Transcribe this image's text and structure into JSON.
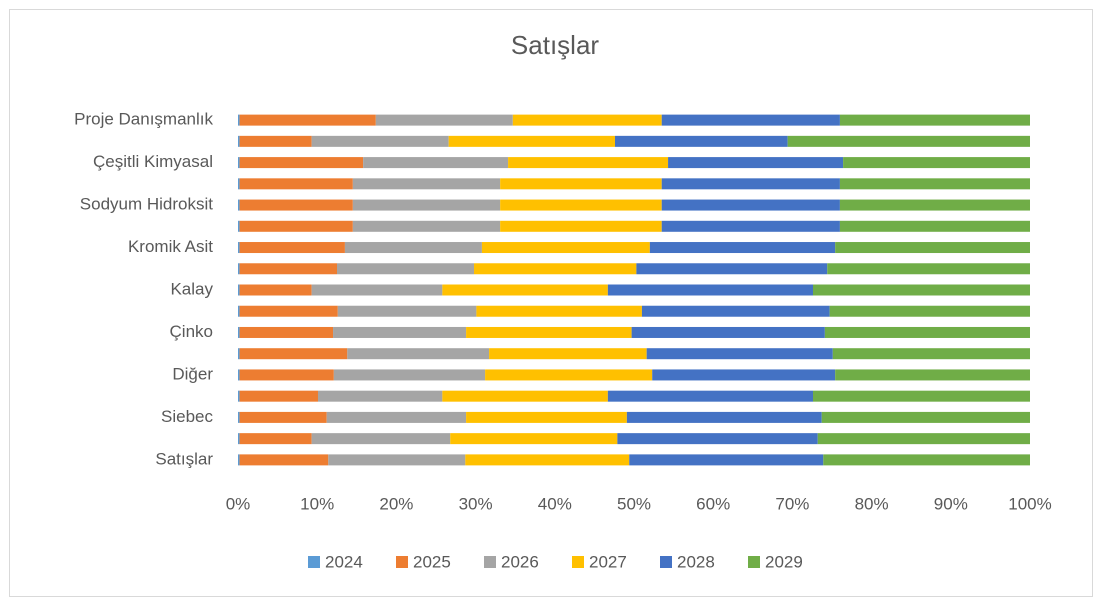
{
  "chart_data": {
    "type": "bar",
    "orientation": "horizontal",
    "stacked": "percent",
    "title": "Satışlar",
    "categories": [
      "Satışlar",
      null,
      "Siebec",
      null,
      "Diğer",
      null,
      "Çinko",
      null,
      "Kalay",
      null,
      "Kromik Asit",
      null,
      "Sodyum Hidroksit",
      null,
      "Çeşitli Kimyasal",
      null,
      "Proje Danışmanlık"
    ],
    "series": [
      {
        "name": "2024",
        "color": "#5b9bd5",
        "values": [
          0.2,
          0.2,
          0.2,
          0.2,
          0.2,
          0.2,
          0.2,
          0.2,
          0.2,
          0.2,
          0.2,
          0.2,
          0.2,
          0.2,
          0.2,
          0.2,
          0.2
        ]
      },
      {
        "name": "2025",
        "color": "#ed7d31",
        "values": [
          11.2,
          9.1,
          11.0,
          9.9,
          11.9,
          13.6,
          11.8,
          12.4,
          9.1,
          12.3,
          13.3,
          14.3,
          14.3,
          14.3,
          15.6,
          9.1,
          17.2
        ]
      },
      {
        "name": "2026",
        "color": "#a5a5a5",
        "values": [
          17.3,
          17.5,
          17.6,
          15.7,
          19.1,
          17.9,
          16.8,
          17.5,
          16.5,
          17.3,
          17.3,
          18.6,
          18.6,
          18.6,
          18.3,
          17.3,
          17.3
        ]
      },
      {
        "name": "2027",
        "color": "#ffc000",
        "values": [
          20.7,
          21.1,
          20.3,
          20.9,
          21.1,
          19.9,
          20.9,
          20.9,
          20.9,
          20.5,
          21.2,
          20.4,
          20.4,
          20.4,
          20.2,
          21.0,
          18.8
        ]
      },
      {
        "name": "2028",
        "color": "#4472c4",
        "values": [
          24.5,
          25.3,
          24.6,
          25.9,
          23.1,
          23.5,
          24.4,
          23.7,
          25.9,
          24.1,
          23.4,
          22.5,
          22.5,
          22.5,
          22.1,
          21.8,
          22.5
        ]
      },
      {
        "name": "2029",
        "color": "#70ad47",
        "values": [
          26.1,
          26.8,
          26.3,
          27.4,
          24.6,
          24.9,
          25.9,
          25.3,
          27.4,
          25.6,
          24.6,
          24.0,
          24.0,
          24.0,
          23.6,
          30.6,
          24.0
        ]
      }
    ],
    "xlim": [
      0,
      100
    ],
    "xticks": [
      {
        "value": 0,
        "label": "0%"
      },
      {
        "value": 10,
        "label": "10%"
      },
      {
        "value": 20,
        "label": "20%"
      },
      {
        "value": 30,
        "label": "30%"
      },
      {
        "value": 40,
        "label": "40%"
      },
      {
        "value": 50,
        "label": "50%"
      },
      {
        "value": 60,
        "label": "60%"
      },
      {
        "value": 70,
        "label": "70%"
      },
      {
        "value": 80,
        "label": "80%"
      },
      {
        "value": 90,
        "label": "90%"
      },
      {
        "value": 100,
        "label": "100%"
      }
    ],
    "grid": false,
    "legend": "bottom"
  }
}
